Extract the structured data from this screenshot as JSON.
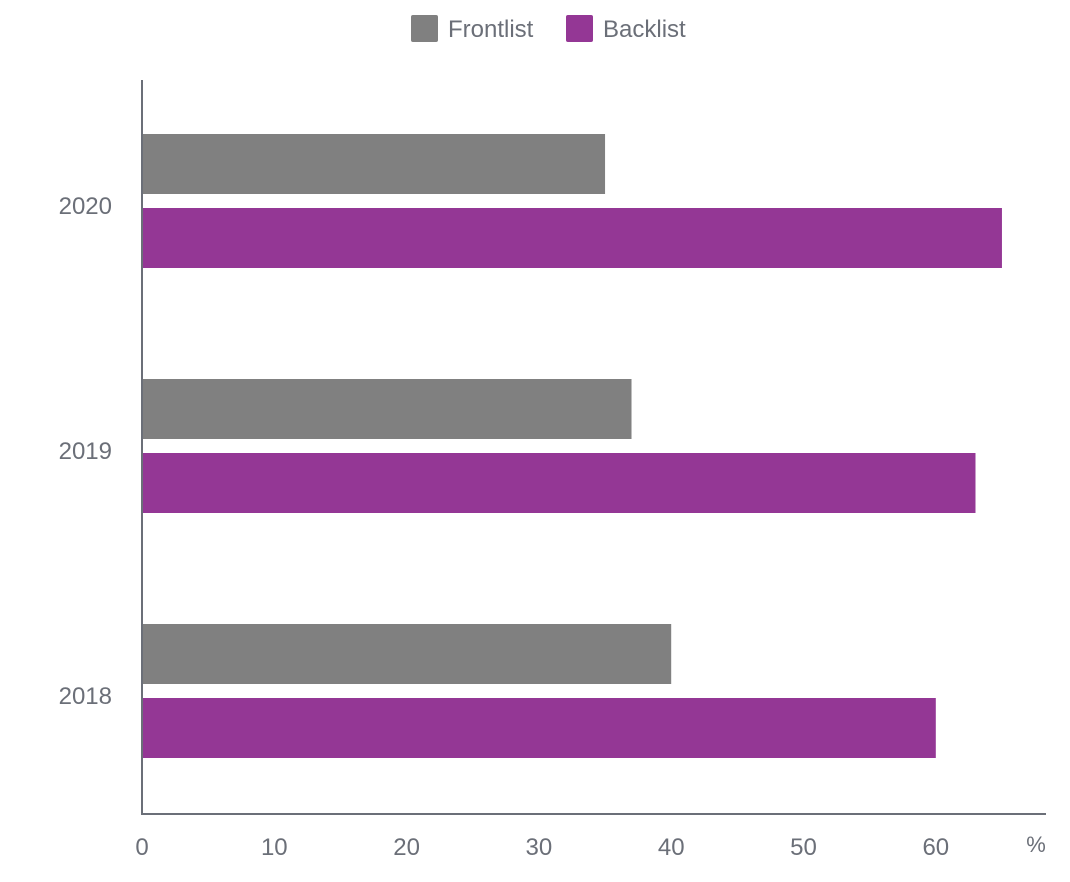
{
  "chart_data": {
    "type": "bar",
    "orientation": "horizontal",
    "categories": [
      "2018",
      "2019",
      "2020"
    ],
    "series": [
      {
        "name": "Frontlist",
        "values": [
          40,
          37,
          35
        ],
        "color": "#808080"
      },
      {
        "name": "Backlist",
        "values": [
          60,
          63,
          65
        ],
        "color": "#943795"
      }
    ],
    "x_ticks": [
      0,
      10,
      20,
      30,
      40,
      50,
      60
    ],
    "xlim": [
      0,
      68.4
    ],
    "x_unit": "%",
    "legend_position": "top-center",
    "grid": false,
    "axis_color": "#6b6f78"
  }
}
